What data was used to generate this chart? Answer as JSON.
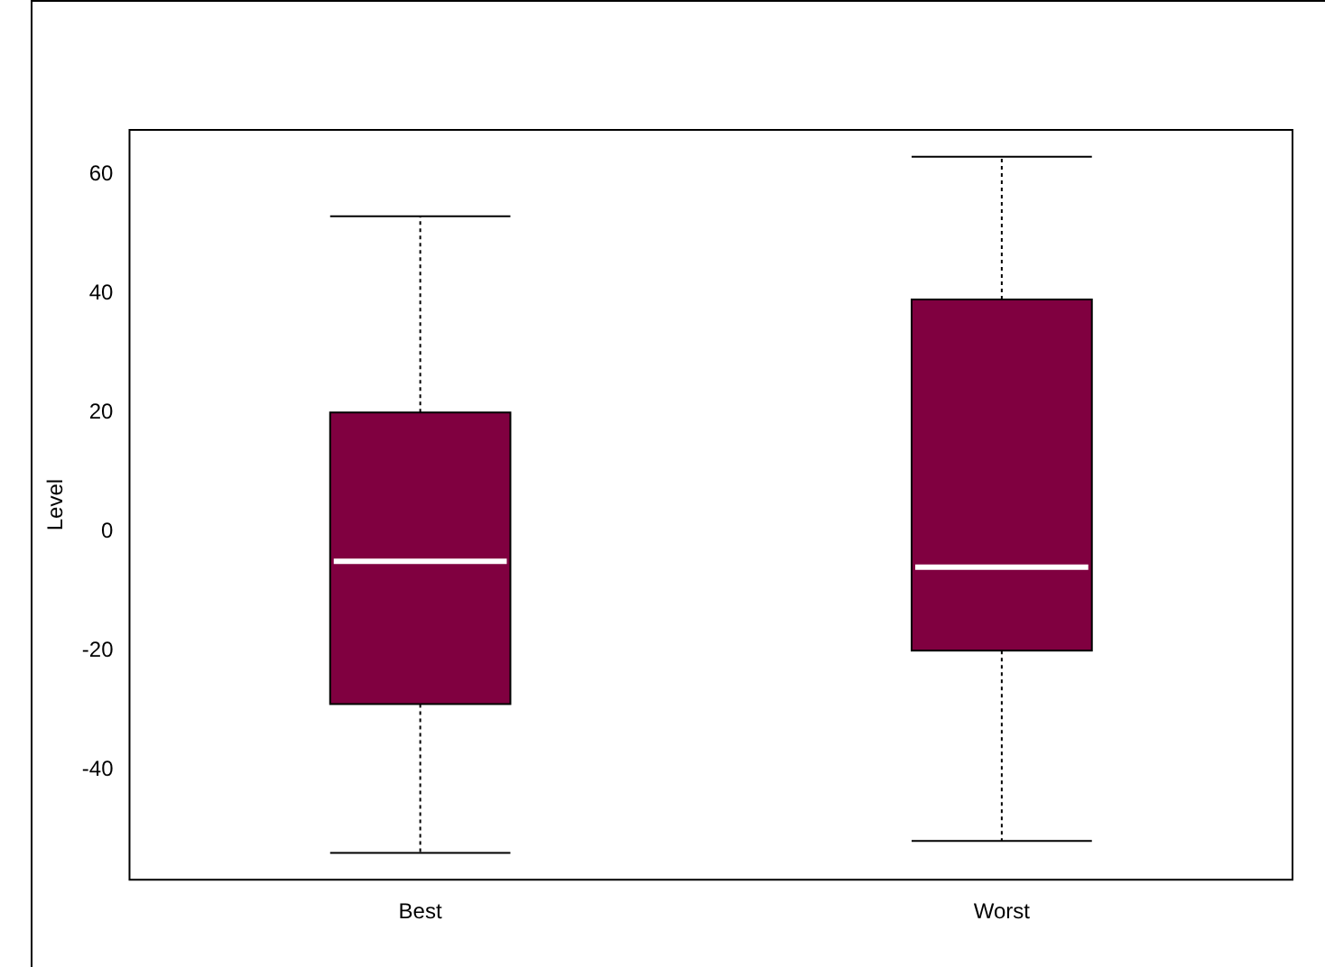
{
  "chart_data": {
    "type": "box",
    "ylabel": "Level",
    "categories": [
      "Best",
      "Worst"
    ],
    "color": "#800040",
    "boxes": [
      {
        "low": -54,
        "q1": -29,
        "median": -5,
        "q3": 20,
        "high": 53
      },
      {
        "low": -52,
        "q1": -20,
        "median": -6,
        "q3": 39,
        "high": 63
      }
    ],
    "ylim": [
      -58.5,
      67.5
    ],
    "yticks": [
      -40,
      -20,
      0,
      20,
      40,
      60
    ],
    "grid": false,
    "legend": false
  }
}
